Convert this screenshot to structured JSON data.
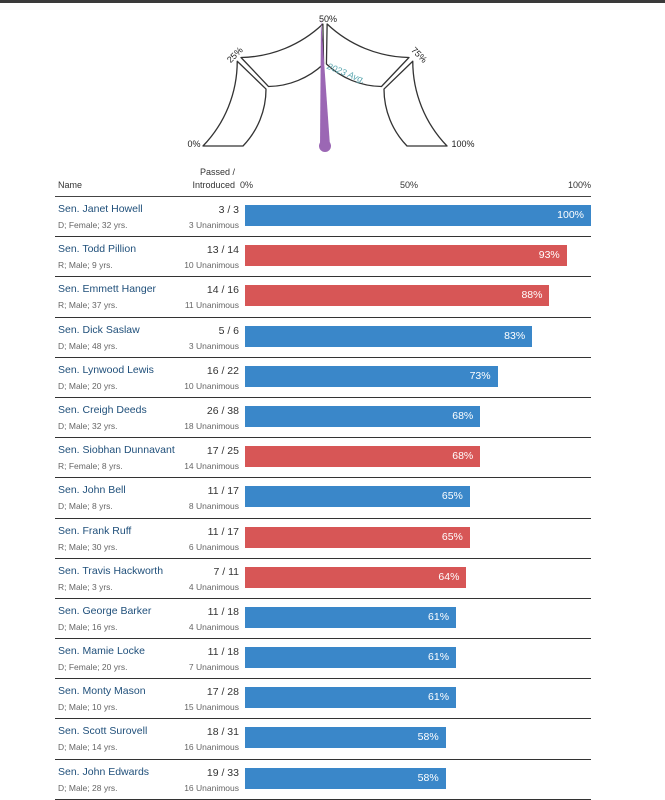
{
  "colors": {
    "D": "#3a87c9",
    "R": "#d75656",
    "needle": "#9b67b4",
    "avg_label": "#5aa7b0"
  },
  "gauge": {
    "tick_labels": [
      "0%",
      "25%",
      "50%",
      "75%",
      "100%"
    ],
    "avg_label": "2023 Avg.",
    "avg_value": 0.49
  },
  "headers": {
    "name": "Name",
    "passed_line1": "Passed /",
    "passed_line2": "Introduced"
  },
  "chart_data": {
    "type": "bar",
    "orientation": "horizontal",
    "xlim": [
      0,
      100
    ],
    "axis_ticks": [
      "0%",
      "50%",
      "100%"
    ],
    "categories": [
      "Sen. Janet Howell",
      "Sen. Todd Pillion",
      "Sen. Emmett Hanger",
      "Sen. Dick Saslaw",
      "Sen. Lynwood Lewis",
      "Sen. Creigh Deeds",
      "Sen. Siobhan Dunnavant",
      "Sen. John Bell",
      "Sen. Frank Ruff",
      "Sen. Travis Hackworth",
      "Sen. George Barker",
      "Sen. Mamie Locke",
      "Sen. Monty Mason",
      "Sen. Scott Surovell",
      "Sen. John Edwards"
    ],
    "values": [
      100,
      93,
      88,
      83,
      73,
      68,
      68,
      65,
      65,
      64,
      61,
      61,
      61,
      58,
      58
    ]
  },
  "rows": [
    {
      "name": "Sen. Janet Howell",
      "desc": "D; Female; 32 yrs.",
      "ratio": "3 / 3",
      "unanimous": "3 Unanimous",
      "pct": 100,
      "label": "100%",
      "party": "D"
    },
    {
      "name": "Sen. Todd Pillion",
      "desc": "R; Male; 9 yrs.",
      "ratio": "13 / 14",
      "unanimous": "10 Unanimous",
      "pct": 93,
      "label": "93%",
      "party": "R"
    },
    {
      "name": "Sen. Emmett Hanger",
      "desc": "R; Male; 37 yrs.",
      "ratio": "14 / 16",
      "unanimous": "11 Unanimous",
      "pct": 88,
      "label": "88%",
      "party": "R"
    },
    {
      "name": "Sen. Dick Saslaw",
      "desc": "D; Male; 48 yrs.",
      "ratio": "5 / 6",
      "unanimous": "3 Unanimous",
      "pct": 83,
      "label": "83%",
      "party": "D"
    },
    {
      "name": "Sen. Lynwood Lewis",
      "desc": "D; Male; 20 yrs.",
      "ratio": "16 / 22",
      "unanimous": "10 Unanimous",
      "pct": 73,
      "label": "73%",
      "party": "D"
    },
    {
      "name": "Sen. Creigh Deeds",
      "desc": "D; Male; 32 yrs.",
      "ratio": "26 / 38",
      "unanimous": "18 Unanimous",
      "pct": 68,
      "label": "68%",
      "party": "D"
    },
    {
      "name": "Sen. Siobhan Dunnavant",
      "desc": "R; Female; 8 yrs.",
      "ratio": "17 / 25",
      "unanimous": "14 Unanimous",
      "pct": 68,
      "label": "68%",
      "party": "R"
    },
    {
      "name": "Sen. John Bell",
      "desc": "D; Male; 8 yrs.",
      "ratio": "11 / 17",
      "unanimous": "8 Unanimous",
      "pct": 65,
      "label": "65%",
      "party": "D"
    },
    {
      "name": "Sen. Frank Ruff",
      "desc": "R; Male; 30 yrs.",
      "ratio": "11 / 17",
      "unanimous": "6 Unanimous",
      "pct": 65,
      "label": "65%",
      "party": "R"
    },
    {
      "name": "Sen. Travis Hackworth",
      "desc": "R; Male; 3 yrs.",
      "ratio": "7 / 11",
      "unanimous": "4 Unanimous",
      "pct": 64,
      "label": "64%",
      "party": "R"
    },
    {
      "name": "Sen. George Barker",
      "desc": "D; Male; 16 yrs.",
      "ratio": "11 / 18",
      "unanimous": "4 Unanimous",
      "pct": 61,
      "label": "61%",
      "party": "D"
    },
    {
      "name": "Sen. Mamie Locke",
      "desc": "D; Female; 20 yrs.",
      "ratio": "11 / 18",
      "unanimous": "7 Unanimous",
      "pct": 61,
      "label": "61%",
      "party": "D"
    },
    {
      "name": "Sen. Monty Mason",
      "desc": "D; Male; 10 yrs.",
      "ratio": "17 / 28",
      "unanimous": "15 Unanimous",
      "pct": 61,
      "label": "61%",
      "party": "D"
    },
    {
      "name": "Sen. Scott Surovell",
      "desc": "D; Male; 14 yrs.",
      "ratio": "18 / 31",
      "unanimous": "16 Unanimous",
      "pct": 58,
      "label": "58%",
      "party": "D"
    },
    {
      "name": "Sen. John Edwards",
      "desc": "D; Male; 28 yrs.",
      "ratio": "19 / 33",
      "unanimous": "16 Unanimous",
      "pct": 58,
      "label": "58%",
      "party": "D"
    }
  ]
}
